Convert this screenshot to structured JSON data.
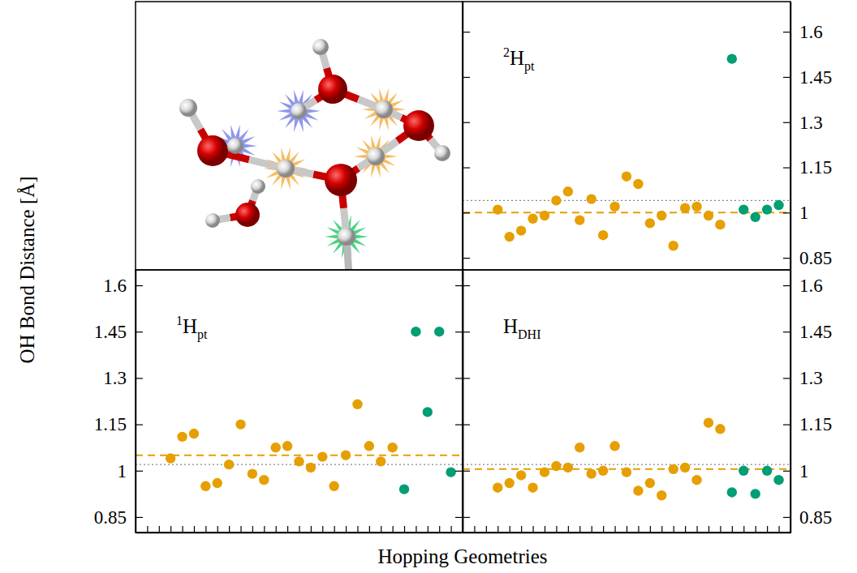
{
  "x_label": "Hopping Geometries",
  "y_label": "OH Bond Distance [Å]",
  "chart_data": [
    {
      "type": "scatter",
      "title": "H",
      "title_superscript": "2",
      "title_subscript": "pt",
      "xlim": [
        -3,
        25
      ],
      "ylim": [
        0.81,
        1.7
      ],
      "yticks": [
        0.85,
        1,
        1.15,
        1.3,
        1.45,
        1.6
      ],
      "tick_labels": "y",
      "reference_lines": [
        {
          "value": 1.0,
          "color": "#e69f00",
          "line_style": "dashed"
        },
        {
          "value": 1.04,
          "color": "#888888",
          "line_style": "dotted"
        }
      ],
      "series": [
        {
          "color": "#e69f00",
          "marker": "circle",
          "x": [
            0,
            1,
            2,
            3,
            4,
            5,
            6,
            7,
            8,
            9,
            10,
            11,
            12,
            13,
            14,
            15,
            16,
            17,
            18,
            19
          ],
          "values": [
            1.01,
            0.92,
            0.94,
            0.98,
            0.99,
            1.04,
            1.07,
            0.975,
            1.045,
            0.925,
            1.02,
            1.12,
            1.095,
            0.965,
            0.99,
            0.89,
            1.015,
            1.02,
            0.99,
            0.96
          ]
        },
        {
          "color": "#009e73",
          "marker": "circle",
          "x": [
            20,
            21,
            22,
            23,
            24
          ],
          "values": [
            1.51,
            1.01,
            0.985,
            1.01,
            1.025
          ]
        }
      ]
    },
    {
      "type": "scatter",
      "title": "H",
      "title_superscript": "1",
      "title_subscript": "pt",
      "xlim": [
        -3,
        25
      ],
      "ylim": [
        0.8,
        1.65
      ],
      "yticks": [
        0.85,
        1,
        1.15,
        1.3,
        1.45,
        1.6
      ],
      "xticks": [
        -2,
        -1,
        0,
        1,
        2,
        3,
        4,
        5,
        6,
        7,
        8,
        9,
        10,
        11,
        12,
        13,
        14,
        15,
        16,
        17,
        18,
        19,
        20,
        21,
        22,
        23,
        24
      ],
      "tick_labels": "y",
      "reference_lines": [
        {
          "value": 1.05,
          "color": "#e69f00",
          "line_style": "dashed"
        },
        {
          "value": 1.02,
          "color": "#888888",
          "line_style": "dotted"
        }
      ],
      "series": [
        {
          "color": "#e69f00",
          "marker": "circle",
          "x": [
            0,
            1,
            2,
            3,
            4,
            5,
            6,
            7,
            8,
            9,
            10,
            11,
            12,
            13,
            14,
            15,
            16,
            17,
            18,
            19
          ],
          "values": [
            1.04,
            1.11,
            1.12,
            0.95,
            0.96,
            1.02,
            1.15,
            0.99,
            0.97,
            1.075,
            1.08,
            1.03,
            1.01,
            1.045,
            0.95,
            1.05,
            1.215,
            1.08,
            1.03,
            1.075
          ]
        },
        {
          "color": "#009e73",
          "marker": "circle",
          "x": [
            20,
            21,
            22,
            23,
            24
          ],
          "values": [
            0.94,
            1.45,
            1.19,
            1.45,
            0.995
          ]
        }
      ]
    },
    {
      "type": "scatter",
      "title": "H",
      "title_subscript": "DHI",
      "xlim": [
        -3,
        25
      ],
      "ylim": [
        0.8,
        1.65
      ],
      "yticks": [
        0.85,
        1,
        1.15,
        1.3,
        1.45,
        1.6
      ],
      "xticks": [
        -2,
        -1,
        0,
        1,
        2,
        3,
        4,
        5,
        6,
        7,
        8,
        9,
        10,
        11,
        12,
        13,
        14,
        15,
        16,
        17,
        18,
        19,
        20,
        21,
        22,
        23,
        24
      ],
      "tick_labels": "y",
      "reference_lines": [
        {
          "value": 1.005,
          "color": "#e69f00",
          "line_style": "dashed"
        },
        {
          "value": 1.02,
          "color": "#888888",
          "line_style": "dotted"
        }
      ],
      "series": [
        {
          "color": "#e69f00",
          "marker": "circle",
          "x": [
            0,
            1,
            2,
            3,
            4,
            5,
            6,
            7,
            8,
            9,
            10,
            11,
            12,
            13,
            14,
            15,
            16,
            17,
            18,
            19
          ],
          "values": [
            0.945,
            0.96,
            0.985,
            0.945,
            0.995,
            1.015,
            1.01,
            1.075,
            0.99,
            1.0,
            1.08,
            0.995,
            0.935,
            0.96,
            0.92,
            1.005,
            1.01,
            0.97,
            1.155,
            1.135
          ]
        },
        {
          "color": "#009e73",
          "marker": "circle",
          "x": [
            20,
            21,
            22,
            23,
            24
          ],
          "values": [
            0.93,
            1.0,
            0.925,
            1.0,
            0.97
          ]
        }
      ]
    }
  ]
}
